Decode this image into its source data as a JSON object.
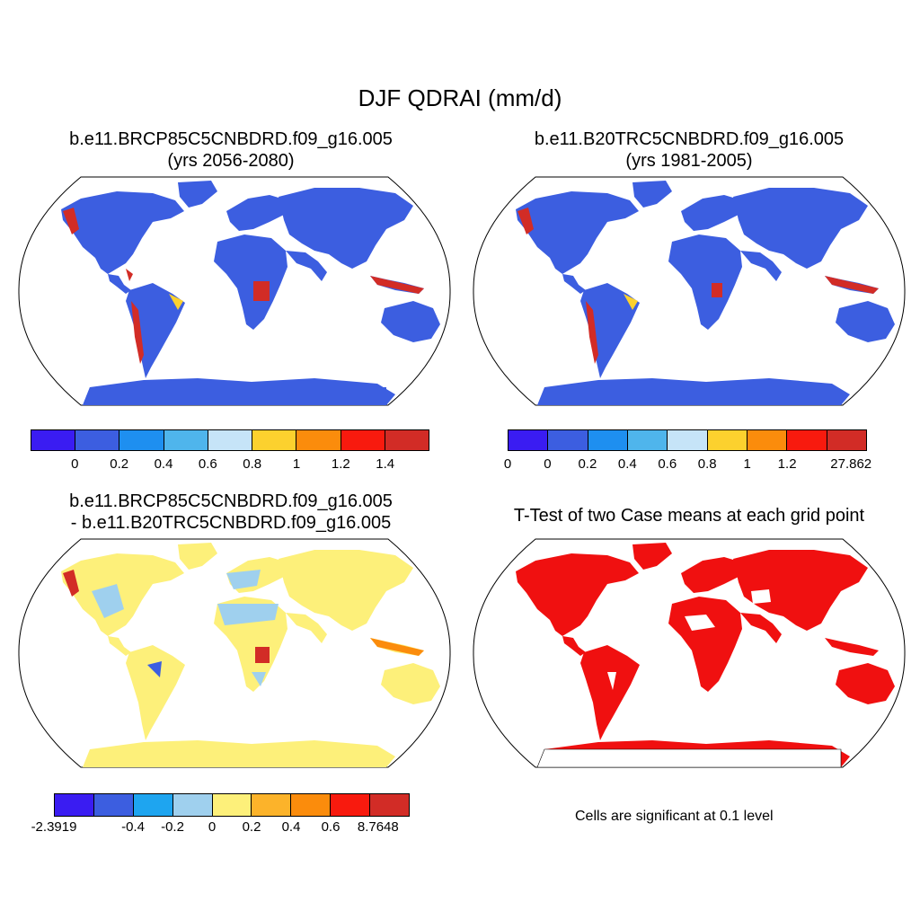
{
  "main_title": "DJF QDRAI (mm/d)",
  "panels": {
    "top_left": {
      "title_line1": "b.e11.BRCP85C5CNBDRD.f09_g16.005",
      "title_line2": "(yrs 2056-2080)",
      "colorbar": {
        "colors": [
          "#3a1cf2",
          "#3c5ee0",
          "#1e8ff0",
          "#4fb5ec",
          "#c6e4f8",
          "#fcd12e",
          "#fb8c0c",
          "#f81a0e",
          "#d22c26"
        ],
        "labels": [
          "0",
          "0.2",
          "0.4",
          "0.6",
          "0.8",
          "1",
          "1.2",
          "1.4"
        ]
      }
    },
    "top_right": {
      "title_line1": "b.e11.B20TRC5CNBDRD.f09_g16.005",
      "title_line2": "(yrs 1981-2005)",
      "colorbar": {
        "colors": [
          "#3a1cf2",
          "#3c5ee0",
          "#1e8ff0",
          "#4fb5ec",
          "#c6e4f8",
          "#fcd12e",
          "#fb8c0c",
          "#f81a0e",
          "#d22c26"
        ],
        "labels": [
          "0",
          "0",
          "0.2",
          "0.4",
          "0.6",
          "0.8",
          "1",
          "1.2",
          "27.862"
        ]
      }
    },
    "bottom_left": {
      "title_line1": "b.e11.BRCP85C5CNBDRD.f09_g16.005",
      "title_line2": "- b.e11.B20TRC5CNBDRD.f09_g16.005",
      "colorbar": {
        "colors": [
          "#3a1cf2",
          "#3c5ee0",
          "#1ea5f0",
          "#9fd0ee",
          "#fdf07a",
          "#fcb32a",
          "#fb8c0c",
          "#f81a0e",
          "#d22c26"
        ],
        "labels": [
          "-2.3919",
          "-0.4",
          "-0.2",
          "0",
          "0.2",
          "0.4",
          "0.6",
          "8.7648"
        ]
      }
    },
    "bottom_right": {
      "title": "T-Test of two Case means at each grid point",
      "note": "Cells are significant at 0.1 level",
      "sig_color": "#f01010"
    }
  }
}
